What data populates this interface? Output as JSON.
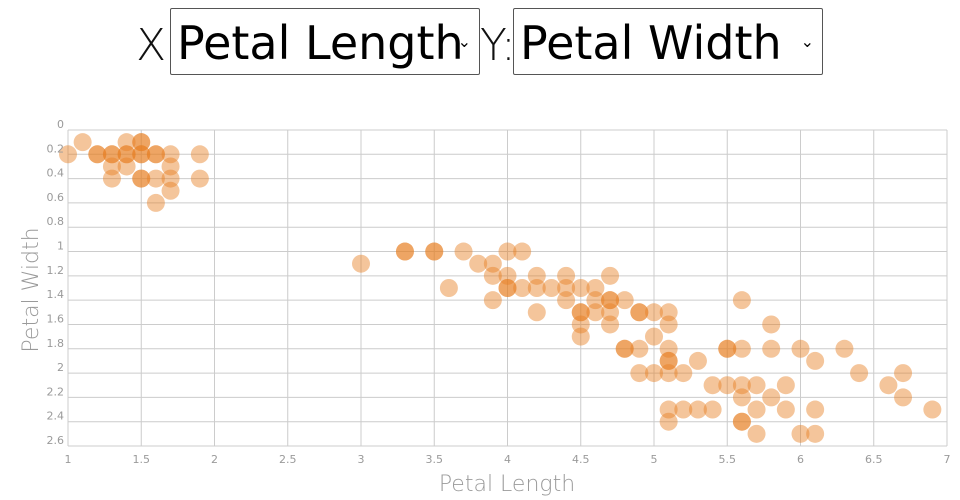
{
  "controls": {
    "x_label": "X:",
    "x_selected": "Petal Length",
    "y_label": "Y:",
    "y_selected": "Petal Width"
  },
  "colors": {
    "point": "#e67e22",
    "grid": "#cccccc"
  },
  "chart_data": {
    "type": "scatter",
    "xlabel": "Petal Length",
    "ylabel": "Petal Width",
    "xlim": [
      1,
      7
    ],
    "ylim": [
      0,
      2.6
    ],
    "y_inverted": true,
    "grid": true,
    "x_ticks": [
      "1",
      "1.5",
      "2",
      "2.5",
      "3",
      "3.5",
      "4",
      "4.5",
      "5",
      "5.5",
      "6",
      "6.5",
      "7"
    ],
    "y_ticks": [
      "0",
      "0.2",
      "0.4",
      "0.6",
      "0.8",
      "1",
      "1.2",
      "1.4",
      "1.6",
      "1.8",
      "2",
      "2.2",
      "2.4",
      "2.6"
    ],
    "series": [
      {
        "points": [
          [
            1.0,
            0.2
          ],
          [
            1.1,
            0.1
          ],
          [
            1.2,
            0.2
          ],
          [
            1.2,
            0.2
          ],
          [
            1.3,
            0.2
          ],
          [
            1.3,
            0.2
          ],
          [
            1.3,
            0.3
          ],
          [
            1.3,
            0.4
          ],
          [
            1.4,
            0.1
          ],
          [
            1.4,
            0.2
          ],
          [
            1.4,
            0.2
          ],
          [
            1.4,
            0.3
          ],
          [
            1.5,
            0.1
          ],
          [
            1.5,
            0.1
          ],
          [
            1.5,
            0.2
          ],
          [
            1.5,
            0.2
          ],
          [
            1.5,
            0.4
          ],
          [
            1.5,
            0.4
          ],
          [
            1.6,
            0.2
          ],
          [
            1.6,
            0.2
          ],
          [
            1.6,
            0.4
          ],
          [
            1.6,
            0.6
          ],
          [
            1.7,
            0.2
          ],
          [
            1.7,
            0.3
          ],
          [
            1.7,
            0.4
          ],
          [
            1.7,
            0.5
          ],
          [
            1.9,
            0.2
          ],
          [
            1.9,
            0.4
          ],
          [
            3.0,
            1.1
          ],
          [
            3.3,
            1.0
          ],
          [
            3.3,
            1.0
          ],
          [
            3.5,
            1.0
          ],
          [
            3.5,
            1.0
          ],
          [
            3.6,
            1.3
          ],
          [
            3.7,
            1.0
          ],
          [
            3.8,
            1.1
          ],
          [
            3.9,
            1.1
          ],
          [
            3.9,
            1.2
          ],
          [
            3.9,
            1.4
          ],
          [
            4.0,
            1.0
          ],
          [
            4.0,
            1.2
          ],
          [
            4.0,
            1.3
          ],
          [
            4.0,
            1.3
          ],
          [
            4.1,
            1.0
          ],
          [
            4.1,
            1.3
          ],
          [
            4.2,
            1.2
          ],
          [
            4.2,
            1.3
          ],
          [
            4.2,
            1.5
          ],
          [
            4.3,
            1.3
          ],
          [
            4.4,
            1.2
          ],
          [
            4.4,
            1.3
          ],
          [
            4.4,
            1.4
          ],
          [
            4.5,
            1.3
          ],
          [
            4.5,
            1.5
          ],
          [
            4.5,
            1.5
          ],
          [
            4.5,
            1.6
          ],
          [
            4.5,
            1.7
          ],
          [
            4.6,
            1.3
          ],
          [
            4.6,
            1.4
          ],
          [
            4.6,
            1.5
          ],
          [
            4.7,
            1.2
          ],
          [
            4.7,
            1.4
          ],
          [
            4.7,
            1.4
          ],
          [
            4.7,
            1.5
          ],
          [
            4.7,
            1.6
          ],
          [
            4.8,
            1.4
          ],
          [
            4.8,
            1.8
          ],
          [
            4.8,
            1.8
          ],
          [
            4.9,
            1.5
          ],
          [
            4.9,
            1.5
          ],
          [
            4.9,
            1.8
          ],
          [
            4.9,
            2.0
          ],
          [
            5.0,
            1.5
          ],
          [
            5.0,
            1.7
          ],
          [
            5.0,
            2.0
          ],
          [
            5.1,
            1.5
          ],
          [
            5.1,
            1.6
          ],
          [
            5.1,
            1.8
          ],
          [
            5.1,
            1.9
          ],
          [
            5.1,
            1.9
          ],
          [
            5.1,
            2.0
          ],
          [
            5.1,
            2.3
          ],
          [
            5.1,
            2.4
          ],
          [
            5.2,
            2.0
          ],
          [
            5.2,
            2.3
          ],
          [
            5.3,
            1.9
          ],
          [
            5.3,
            2.3
          ],
          [
            5.4,
            2.1
          ],
          [
            5.4,
            2.3
          ],
          [
            5.5,
            1.8
          ],
          [
            5.5,
            1.8
          ],
          [
            5.5,
            2.1
          ],
          [
            5.6,
            1.4
          ],
          [
            5.6,
            1.8
          ],
          [
            5.6,
            2.1
          ],
          [
            5.6,
            2.2
          ],
          [
            5.6,
            2.4
          ],
          [
            5.6,
            2.4
          ],
          [
            5.7,
            2.1
          ],
          [
            5.7,
            2.3
          ],
          [
            5.7,
            2.5
          ],
          [
            5.8,
            1.6
          ],
          [
            5.8,
            1.8
          ],
          [
            5.8,
            2.2
          ],
          [
            5.9,
            2.1
          ],
          [
            5.9,
            2.3
          ],
          [
            6.0,
            1.8
          ],
          [
            6.0,
            2.5
          ],
          [
            6.1,
            1.9
          ],
          [
            6.1,
            2.3
          ],
          [
            6.1,
            2.5
          ],
          [
            6.3,
            1.8
          ],
          [
            6.4,
            2.0
          ],
          [
            6.6,
            2.1
          ],
          [
            6.7,
            2.0
          ],
          [
            6.7,
            2.2
          ],
          [
            6.9,
            2.3
          ]
        ]
      }
    ]
  }
}
